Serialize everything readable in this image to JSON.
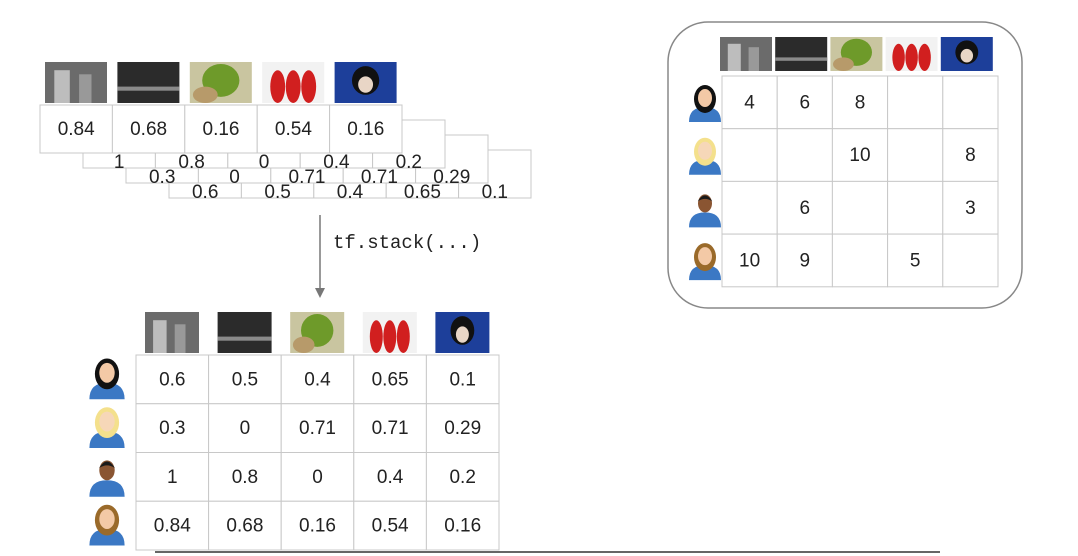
{
  "stack": {
    "rows": [
      [
        0.84,
        0.68,
        0.16,
        0.54,
        0.16
      ],
      [
        1,
        0.8,
        0,
        0.4,
        0.2
      ],
      [
        0.3,
        0,
        0.71,
        0.71,
        0.29
      ],
      [
        0.6,
        0.5,
        0.4,
        0.65,
        0.1
      ]
    ],
    "operation": "tf.stack(...)"
  },
  "dense_matrix": {
    "rows": [
      [
        0.6,
        0.5,
        0.4,
        0.65,
        0.1
      ],
      [
        0.3,
        0,
        0.71,
        0.71,
        0.29
      ],
      [
        1,
        0.8,
        0,
        0.4,
        0.2
      ],
      [
        0.84,
        0.68,
        0.16,
        0.54,
        0.16
      ]
    ]
  },
  "sparse_matrix": {
    "rows": [
      [
        4,
        6,
        8,
        null,
        null
      ],
      [
        null,
        null,
        10,
        null,
        8
      ],
      [
        null,
        6,
        null,
        null,
        3
      ],
      [
        10,
        9,
        null,
        5,
        null
      ]
    ]
  }
}
